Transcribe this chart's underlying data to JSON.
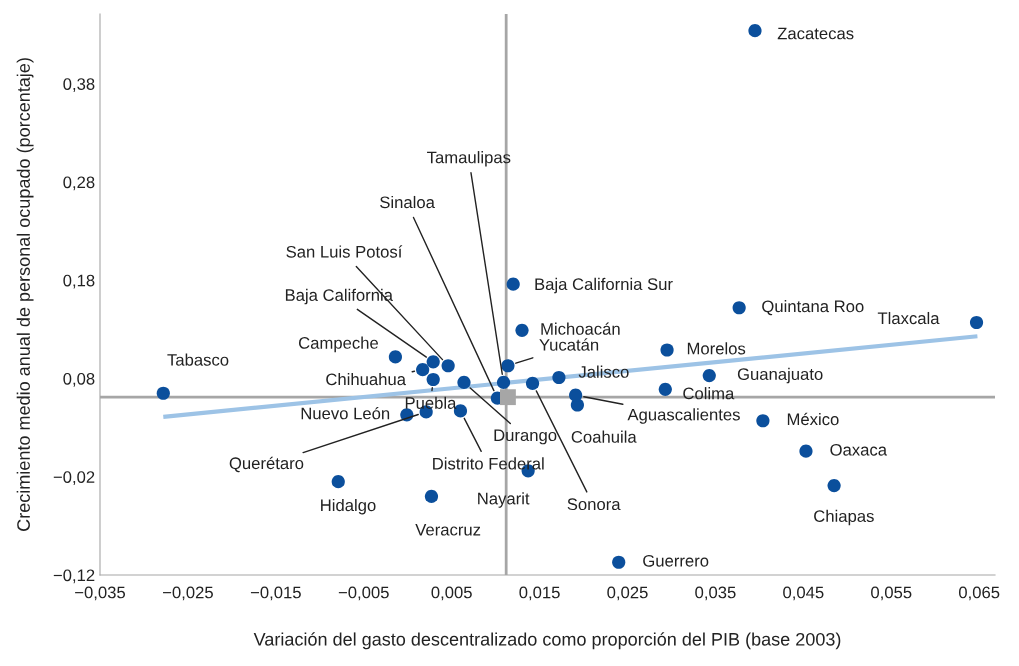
{
  "chart_data": {
    "type": "scatter",
    "xlabel": "Variación del gasto descentralizado como proporción del PIB (base 2003)",
    "ylabel": "Crecimiento medio anual de personal ocupado (porcentaje)",
    "xlim": [
      -0.035,
      0.0668
    ],
    "ylim": [
      -0.12,
      0.451
    ],
    "xticks": [
      {
        "value": -0.035,
        "label": "−0,035"
      },
      {
        "value": -0.025,
        "label": "−0,025"
      },
      {
        "value": -0.015,
        "label": "−0,015"
      },
      {
        "value": -0.005,
        "label": "−0,005"
      },
      {
        "value": 0.005,
        "label": "0,005"
      },
      {
        "value": 0.015,
        "label": "0,015"
      },
      {
        "value": 0.025,
        "label": "0,025"
      },
      {
        "value": 0.035,
        "label": "0,035"
      },
      {
        "value": 0.045,
        "label": "0,045"
      },
      {
        "value": 0.055,
        "label": "0,055"
      },
      {
        "value": 0.065,
        "label": "0,065"
      }
    ],
    "yticks": [
      {
        "value": -0.12,
        "label": "−0,12"
      },
      {
        "value": -0.02,
        "label": "−0,02"
      },
      {
        "value": 0.08,
        "label": "0,08"
      },
      {
        "value": 0.18,
        "label": "0,18"
      },
      {
        "value": 0.28,
        "label": "0,28"
      },
      {
        "value": 0.38,
        "label": "0,38"
      }
    ],
    "grid": false,
    "legend": false,
    "marker": "circle",
    "ref_lines": [
      {
        "axis": "x",
        "value": 0.0112,
        "color": "#a6a6a6"
      },
      {
        "axis": "y",
        "value": 0.061,
        "color": "#a6a6a6"
      }
    ],
    "series": [
      {
        "name": "Zacatecas",
        "color": "#0b4f9c",
        "x": [
          0.0395
        ],
        "values": [
          0.434
        ]
      },
      {
        "name": "Tabasco",
        "color": "#0b4f9c",
        "x": [
          -0.0278
        ],
        "values": [
          0.065
        ]
      },
      {
        "name": "Tamaulipas",
        "color": "#0b4f9c",
        "x": [
          0.0109
        ],
        "values": [
          0.076
        ]
      },
      {
        "name": "Sinaloa",
        "color": "#0b4f9c",
        "x": [
          0.0102
        ],
        "values": [
          0.06
        ]
      },
      {
        "name": "San Luis Potosí",
        "color": "#0b4f9c",
        "x": [
          0.0046
        ],
        "values": [
          0.093
        ]
      },
      {
        "name": "Baja California",
        "color": "#0b4f9c",
        "x": [
          0.0029
        ],
        "values": [
          0.097
        ]
      },
      {
        "name": "Campeche",
        "color": "#0b4f9c",
        "x": [
          -0.0014
        ],
        "values": [
          0.102
        ]
      },
      {
        "name": "Chihuahua",
        "color": "#0b4f9c",
        "x": [
          0.0017
        ],
        "values": [
          0.089
        ]
      },
      {
        "name": "Puebla",
        "color": "#0b4f9c",
        "x": [
          0.0029
        ],
        "values": [
          0.079
        ]
      },
      {
        "name": "Durango",
        "color": "#0b4f9c",
        "x": [
          0.0064
        ],
        "values": [
          0.076
        ]
      },
      {
        "name": "Nuevo León",
        "color": "#0b4f9c",
        "x": [
          -0.0001
        ],
        "values": [
          0.043
        ]
      },
      {
        "name": "Querétaro",
        "color": "#0b4f9c",
        "x": [
          0.0021
        ],
        "values": [
          0.046
        ]
      },
      {
        "name": "Distrito Federal",
        "color": "#0b4f9c",
        "x": [
          0.006
        ],
        "values": [
          0.047
        ]
      },
      {
        "name": "Hidalgo",
        "color": "#0b4f9c",
        "x": [
          -0.0079
        ],
        "values": [
          -0.025
        ]
      },
      {
        "name": "Veracruz",
        "color": "#0b4f9c",
        "x": [
          0.0027
        ],
        "values": [
          -0.04
        ]
      },
      {
        "name": "Nayarit",
        "color": "#0b4f9c",
        "x": [
          0.0137
        ],
        "values": [
          -0.014
        ]
      },
      {
        "name": "Sonora",
        "color": "#0b4f9c",
        "x": [
          0.0142
        ],
        "values": [
          0.075
        ]
      },
      {
        "name": "Coahuila",
        "color": "#0b4f9c",
        "x": [
          0.0193
        ],
        "values": [
          0.053
        ]
      },
      {
        "name": "Aguascalientes",
        "color": "#0b4f9c",
        "x": [
          0.0191
        ],
        "values": [
          0.063
        ]
      },
      {
        "name": "Jalisco",
        "color": "#0b4f9c",
        "x": [
          0.0172
        ],
        "values": [
          0.081
        ]
      },
      {
        "name": "Yucatán",
        "color": "#0b4f9c",
        "x": [
          0.0114
        ],
        "values": [
          0.093
        ]
      },
      {
        "name": "Michoacán",
        "color": "#0b4f9c",
        "x": [
          0.013
        ],
        "values": [
          0.129
        ]
      },
      {
        "name": "Baja California Sur",
        "color": "#0b4f9c",
        "x": [
          0.012
        ],
        "values": [
          0.176
        ]
      },
      {
        "name": "Colima",
        "color": "#0b4f9c",
        "x": [
          0.0293
        ],
        "values": [
          0.069
        ]
      },
      {
        "name": "Morelos",
        "color": "#0b4f9c",
        "x": [
          0.0295
        ],
        "values": [
          0.109
        ]
      },
      {
        "name": "Guanajuato",
        "color": "#0b4f9c",
        "x": [
          0.0343
        ],
        "values": [
          0.083
        ]
      },
      {
        "name": "Quintana Roo",
        "color": "#0b4f9c",
        "x": [
          0.0377
        ],
        "values": [
          0.152
        ]
      },
      {
        "name": "Tlaxcala",
        "color": "#0b4f9c",
        "x": [
          0.0647
        ],
        "values": [
          0.137
        ]
      },
      {
        "name": "México",
        "color": "#0b4f9c",
        "x": [
          0.0404
        ],
        "values": [
          0.037
        ]
      },
      {
        "name": "Oaxaca",
        "color": "#0b4f9c",
        "x": [
          0.0453
        ],
        "values": [
          0.006
        ]
      },
      {
        "name": "Chiapas",
        "color": "#0b4f9c",
        "x": [
          0.0485
        ],
        "values": [
          -0.029
        ]
      },
      {
        "name": "Guerrero",
        "color": "#0b4f9c",
        "x": [
          0.024
        ],
        "values": [
          -0.107
        ]
      },
      {
        "type": "line",
        "marker": "none",
        "color": "#9dc3e6",
        "x": [
          -0.0278,
          0.0648
        ],
        "values": [
          0.041,
          0.123
        ]
      },
      {
        "color": "#a6a6a6",
        "marker": "square",
        "x": [
          0.0114
        ],
        "values": [
          0.061
        ]
      }
    ]
  }
}
